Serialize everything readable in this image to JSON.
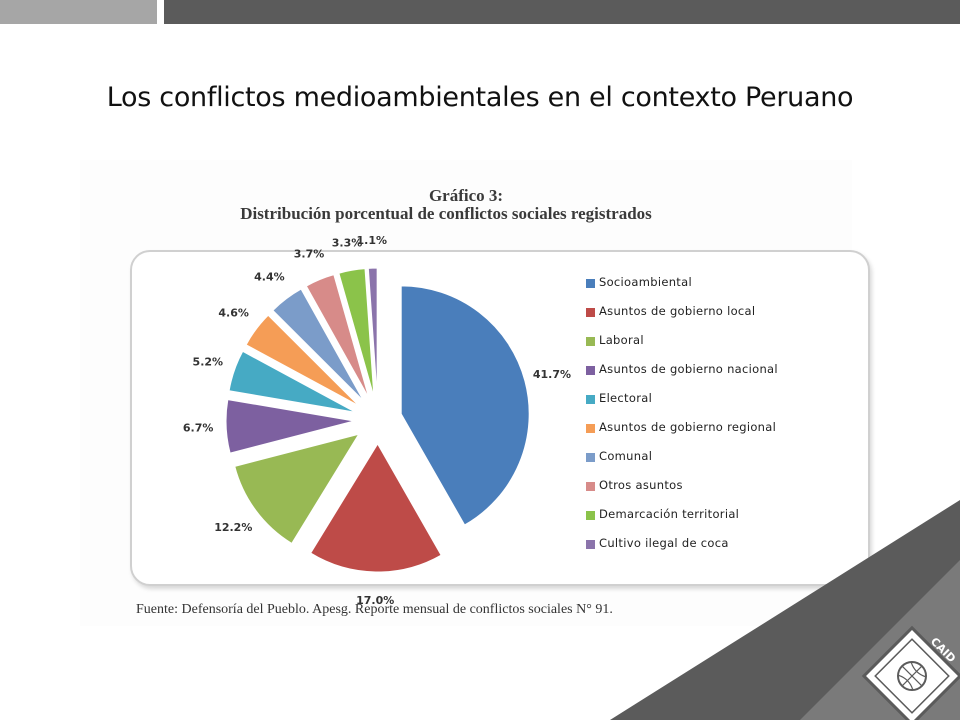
{
  "slide": {
    "title": "Los conflictos medioambientales en el contexto Peruano",
    "source": "Fuente: Defensoría del Pueblo. Apesg. Reporte mensual de conflictos sociales N° 91."
  },
  "chart_data": {
    "type": "pie",
    "title": "Gráfico 3:",
    "subtitle": "Distribución porcentual de conflictos sociales registrados",
    "categories": [
      "Socioambiental",
      "Asuntos de gobierno local",
      "Laboral",
      "Asuntos de gobierno nacional",
      "Electoral",
      "Asuntos de gobierno regional",
      "Comunal",
      "Otros asuntos",
      "Demarcación territorial",
      "Cultivo ilegal de coca"
    ],
    "values": [
      41.7,
      17.0,
      12.2,
      6.7,
      5.2,
      4.6,
      4.4,
      3.7,
      3.3,
      1.1
    ],
    "labels": [
      "41.7%",
      "17.0%",
      "12.2%",
      "6.7%",
      "5.2%",
      "4.6%",
      "4.4%",
      "3.7%",
      "3.3%",
      "1.1%"
    ],
    "colors": [
      "#4a7ebb",
      "#be4b48",
      "#98b954",
      "#7d60a0",
      "#46aac4",
      "#f59d56",
      "#7b9cc9",
      "#d78b89",
      "#8bc34a",
      "#8b74ab"
    ],
    "legend_position": "right",
    "exploded": true
  },
  "logo": {
    "text": "CAID"
  }
}
